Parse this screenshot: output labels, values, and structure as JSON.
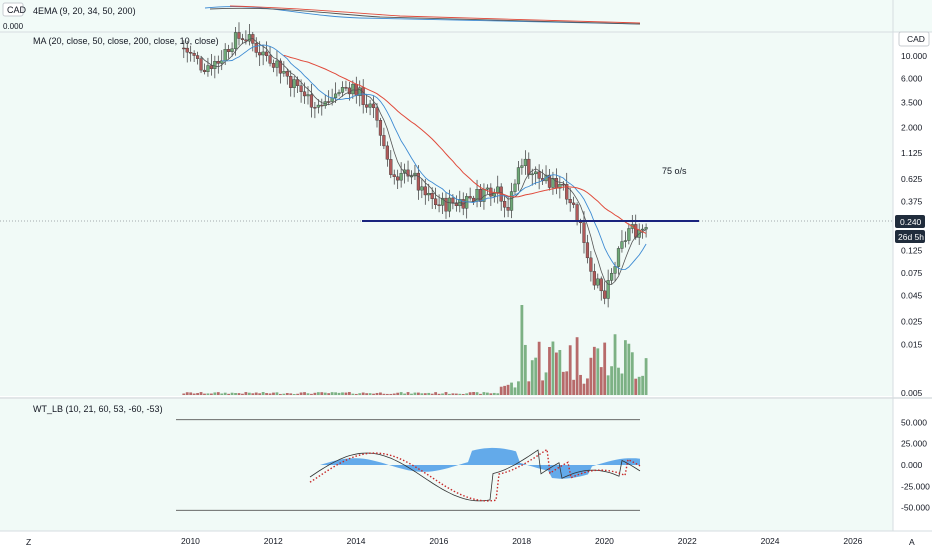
{
  "top_pane": {
    "currency": "CAD",
    "indicator": "4EMA (9, 20, 34, 50, 200)",
    "scale_label": "0.000"
  },
  "main_pane": {
    "indicator": "MA (20, close, 50, close, 200, close, 10, close)",
    "currency_badge": "CAD",
    "annotation": "75 o/s",
    "last_price": "0.240",
    "countdown": "26d 5h"
  },
  "osc_pane": {
    "indicator": "WT_LB (10, 21, 60, 53, -60, -53)"
  },
  "bottom_bar": {
    "left_icon_label": "Z",
    "right_icon_label": "A"
  },
  "colors": {
    "up": "#6fa977",
    "down": "#b05a5a",
    "ma_red": "#e0493a",
    "ma_blue": "#3e8bd3",
    "ma_dark": "#555555",
    "support": "#1a237e",
    "histogram": "#4a9be8",
    "wt_dots": "#c62828"
  },
  "chart_data": {
    "type": "candlestick",
    "scale": "log",
    "x_ticks": [
      "2010",
      "2012",
      "2014",
      "2016",
      "2018",
      "2020",
      "2022",
      "2024",
      "2026"
    ],
    "y_ticks": [
      "10.000",
      "6.000",
      "3.500",
      "2.000",
      "1.125",
      "0.625",
      "0.375",
      "0.125",
      "0.075",
      "0.045",
      "0.025",
      "0.015",
      "0.005"
    ],
    "ylim": [
      0.005,
      18
    ],
    "support_level": 0.24,
    "ohlc_yearly_path": [
      [
        2009.85,
        12.0
      ],
      [
        2010.3,
        8.0
      ],
      [
        2010.7,
        9.0
      ],
      [
        2011.0,
        14.0
      ],
      [
        2011.3,
        16.0
      ],
      [
        2011.7,
        11.0
      ],
      [
        2012.0,
        9.5
      ],
      [
        2012.4,
        6.0
      ],
      [
        2012.8,
        4.0
      ],
      [
        2013.2,
        3.2
      ],
      [
        2013.6,
        4.5
      ],
      [
        2013.9,
        5.2
      ],
      [
        2014.1,
        4.2
      ],
      [
        2014.5,
        2.5
      ],
      [
        2014.8,
        0.9
      ],
      [
        2015.0,
        0.55
      ],
      [
        2015.3,
        0.8
      ],
      [
        2015.6,
        0.45
      ],
      [
        2016.0,
        0.35
      ],
      [
        2016.5,
        0.38
      ],
      [
        2017.0,
        0.45
      ],
      [
        2017.4,
        0.55
      ],
      [
        2017.7,
        0.32
      ],
      [
        2018.0,
        1.0
      ],
      [
        2018.3,
        0.7
      ],
      [
        2018.7,
        0.55
      ],
      [
        2019.0,
        0.6
      ],
      [
        2019.4,
        0.25
      ],
      [
        2019.7,
        0.08
      ],
      [
        2020.0,
        0.04
      ],
      [
        2020.3,
        0.1
      ],
      [
        2020.6,
        0.2
      ],
      [
        2020.9,
        0.2
      ],
      [
        2021.0,
        0.24
      ]
    ],
    "osc_ticks": [
      "50.000",
      "25.000",
      "0.000",
      "-25.000",
      "-50.000"
    ],
    "osc_ylim": [
      -62,
      62
    ]
  }
}
